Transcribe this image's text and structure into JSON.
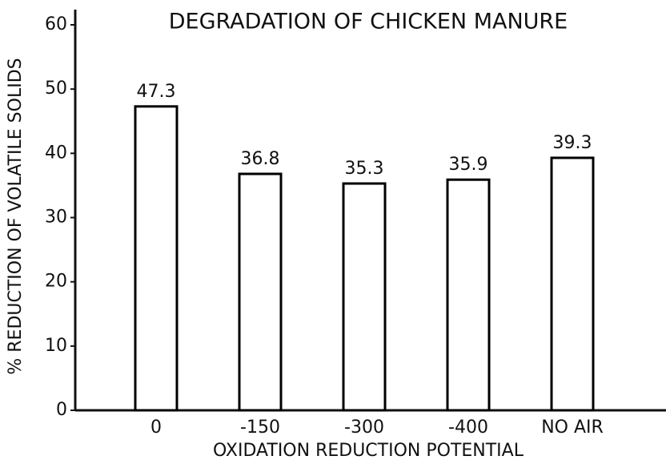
{
  "chart_data": {
    "type": "bar",
    "title": "DEGRADATION OF CHICKEN MANURE",
    "x_label": "OXIDATION REDUCTION POTENTIAL",
    "y_label": "% REDUCTION OF VOLATILE SOLIDS",
    "categories": [
      "0",
      "-150",
      "-300",
      "-400",
      "NO AIR"
    ],
    "values": [
      47.3,
      36.8,
      35.3,
      35.9,
      39.3
    ],
    "color": "#000000",
    "ylim": [
      0,
      60
    ],
    "yticks": [
      0,
      10,
      20,
      30,
      40,
      50,
      60
    ],
    "grid": false
  }
}
